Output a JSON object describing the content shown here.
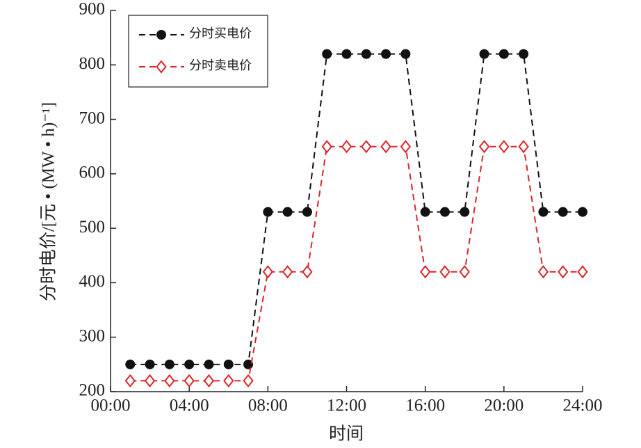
{
  "chart_data": {
    "type": "line",
    "x_label": "时间",
    "y_label": "分时电价/[元 • (MW • h)⁻¹]",
    "x": [
      1,
      2,
      3,
      4,
      5,
      6,
      7,
      8,
      9,
      10,
      11,
      12,
      13,
      14,
      15,
      16,
      17,
      18,
      19,
      20,
      21,
      22,
      23,
      24
    ],
    "series": [
      {
        "name": "分时买电价",
        "color": "#111111",
        "marker": "circle",
        "values": [
          250,
          250,
          250,
          250,
          250,
          250,
          250,
          530,
          530,
          530,
          820,
          820,
          820,
          820,
          820,
          530,
          530,
          530,
          820,
          820,
          820,
          530,
          530,
          530
        ]
      },
      {
        "name": "分时卖电价",
        "color": "#d9262b",
        "marker": "diamond",
        "values": [
          220,
          220,
          220,
          220,
          220,
          220,
          220,
          420,
          420,
          420,
          650,
          650,
          650,
          650,
          650,
          420,
          420,
          420,
          650,
          650,
          650,
          420,
          420,
          420
        ]
      }
    ],
    "xlim": [
      0,
      24
    ],
    "xticks": [
      {
        "value": 0,
        "label": "00:00"
      },
      {
        "value": 4,
        "label": "04:00"
      },
      {
        "value": 8,
        "label": "08:00"
      },
      {
        "value": 12,
        "label": "12:00"
      },
      {
        "value": 16,
        "label": "16:00"
      },
      {
        "value": 20,
        "label": "20:00"
      },
      {
        "value": 24,
        "label": "24:00"
      }
    ],
    "ylim": [
      200,
      900
    ],
    "yticks": [
      200,
      300,
      400,
      500,
      600,
      700,
      800,
      900
    ],
    "legend": "upper left",
    "grid": false
  }
}
